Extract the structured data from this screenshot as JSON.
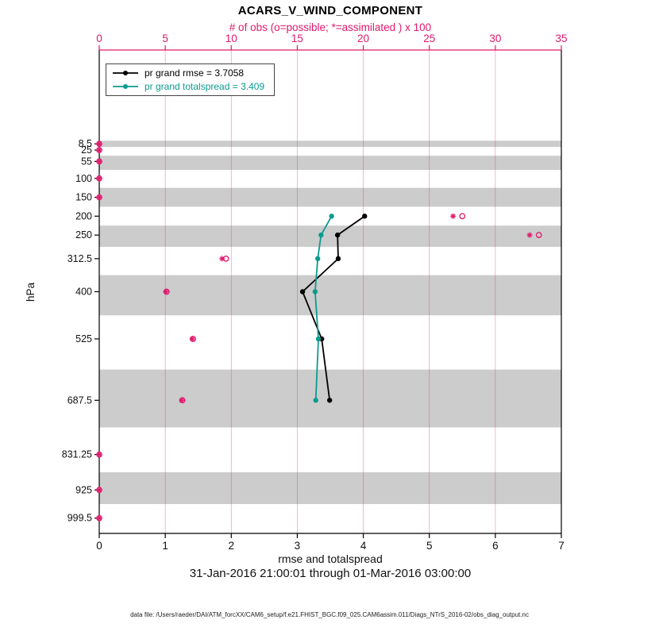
{
  "title": "ACARS_V_WIND_COMPONENT",
  "subtitle": "31-Jan-2016 21:00:01 through 01-Mar-2016 03:00:00",
  "footer": "data file: /Users/raeder/DAI/ATM_forcXX/CAM6_setup/f.e21.FHIST_BGC.f09_025.CAM6assim.011/Diags_NTrS_2016-02/obs_diag_output.nc",
  "axis_labels": {
    "top": "# of obs (o=possible; *=assimilated ) x 100",
    "bottom": "rmse and totalspread",
    "left": "hPa"
  },
  "chart_data": {
    "type": "line",
    "orientation": "vertical-profile",
    "title": "ACARS_V_WIND_COMPONENT",
    "band_color": "#cccccc",
    "top_axis": {
      "label": "# of obs (o=possible; *=assimilated ) x 100",
      "range": [
        0,
        35
      ],
      "ticks": [
        0,
        5,
        10,
        15,
        20,
        25,
        30,
        35
      ]
    },
    "bottom_axis": {
      "label": "rmse and totalspread",
      "range": [
        0,
        7
      ],
      "ticks": [
        0,
        1,
        2,
        3,
        4,
        5,
        6,
        7
      ]
    },
    "left_axis": {
      "label": "hPa",
      "range": [
        -240,
        1040
      ],
      "levels": [
        8.5,
        25,
        55,
        100,
        150,
        200,
        250,
        312.5,
        400,
        525,
        687.5,
        831.25,
        925,
        999.5
      ]
    },
    "shaded_bands_hpa": [
      [
        0.25,
        16.75
      ],
      [
        40,
        77.5
      ],
      [
        125,
        175
      ],
      [
        225,
        281.25
      ],
      [
        356.25,
        462.5
      ],
      [
        606.25,
        759.375
      ],
      [
        878.125,
        962.25
      ]
    ],
    "series": [
      {
        "name": "pr grand rmse = 3.7058",
        "color": "#000000",
        "levels": [
          200,
          250,
          312.5,
          400,
          525,
          687.5
        ],
        "values": [
          4.02,
          3.61,
          3.62,
          3.08,
          3.37,
          3.49
        ]
      },
      {
        "name": "pr grand totalspread = 3.409",
        "color": "#0b9b8f",
        "levels": [
          200,
          250,
          312.5,
          400,
          525,
          687.5
        ],
        "values": [
          3.52,
          3.36,
          3.31,
          3.27,
          3.32,
          3.28
        ]
      }
    ],
    "obs_counts": {
      "color": "#e0186c",
      "units": "x 100",
      "levels": [
        8.5,
        25,
        55,
        100,
        150,
        200,
        250,
        312.5,
        400,
        525,
        687.5,
        831.25,
        925,
        999.5
      ],
      "possible": [
        0,
        0,
        0,
        0,
        0,
        27.5,
        33.3,
        9.6,
        5.1,
        7.1,
        6.3,
        0,
        0,
        0
      ],
      "assimilated": [
        0,
        0,
        0,
        0,
        0,
        26.8,
        32.6,
        9.3,
        5.05,
        7.05,
        6.25,
        0,
        0,
        0
      ]
    }
  }
}
